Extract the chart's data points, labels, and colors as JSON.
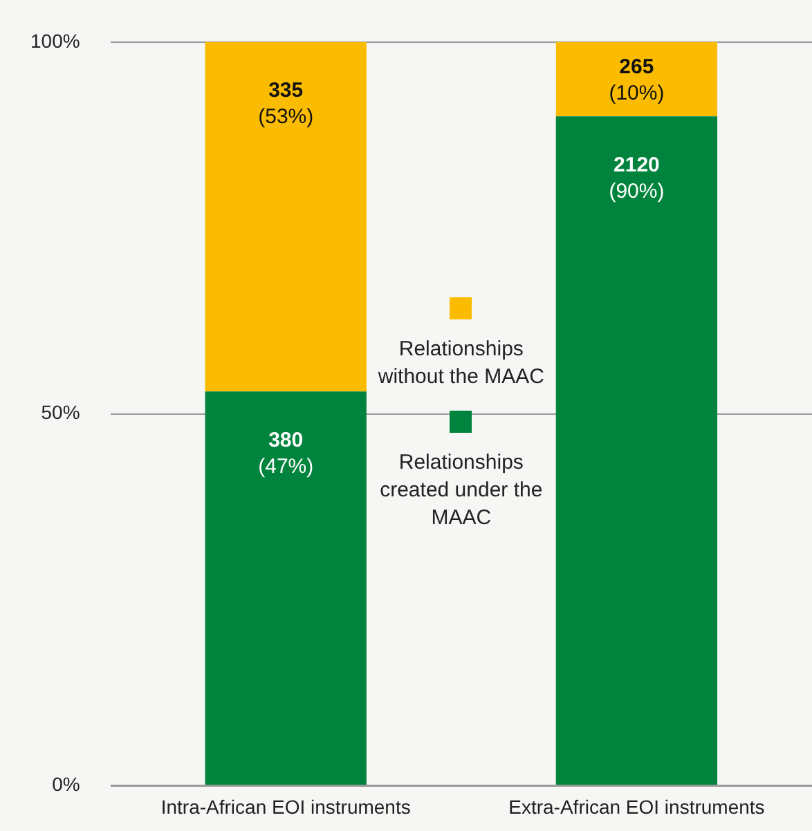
{
  "chart_data": {
    "type": "bar",
    "stacked": true,
    "categories": [
      "Intra-African EOI instruments",
      "Extra-African EOI instruments"
    ],
    "series": [
      {
        "name": "Relationships created under the MAAC",
        "color": "#00843d",
        "values": [
          53,
          90
        ]
      },
      {
        "name": "Relationships without the MAAC",
        "color": "#fbbc00",
        "values": [
          47,
          10
        ]
      }
    ],
    "annotations": [
      {
        "text": "380\n(47%)",
        "x": "Intra-African EOI instruments",
        "y": 53
      },
      {
        "text": "335\n(53%)",
        "x": "Intra-African EOI instruments",
        "y": 100
      },
      {
        "text": "2120\n(90%)",
        "x": "Extra-African EOI instruments",
        "y": 90
      },
      {
        "text": "265\n(10%)",
        "x": "Extra-African EOI instruments",
        "y": 100
      }
    ],
    "ylim": [
      0,
      100
    ],
    "yticks": [
      {
        "value": 0,
        "label": "0%"
      },
      {
        "value": 50,
        "label": "50%"
      },
      {
        "value": 100,
        "label": "100%"
      }
    ],
    "grid": "y",
    "legend": "center"
  }
}
